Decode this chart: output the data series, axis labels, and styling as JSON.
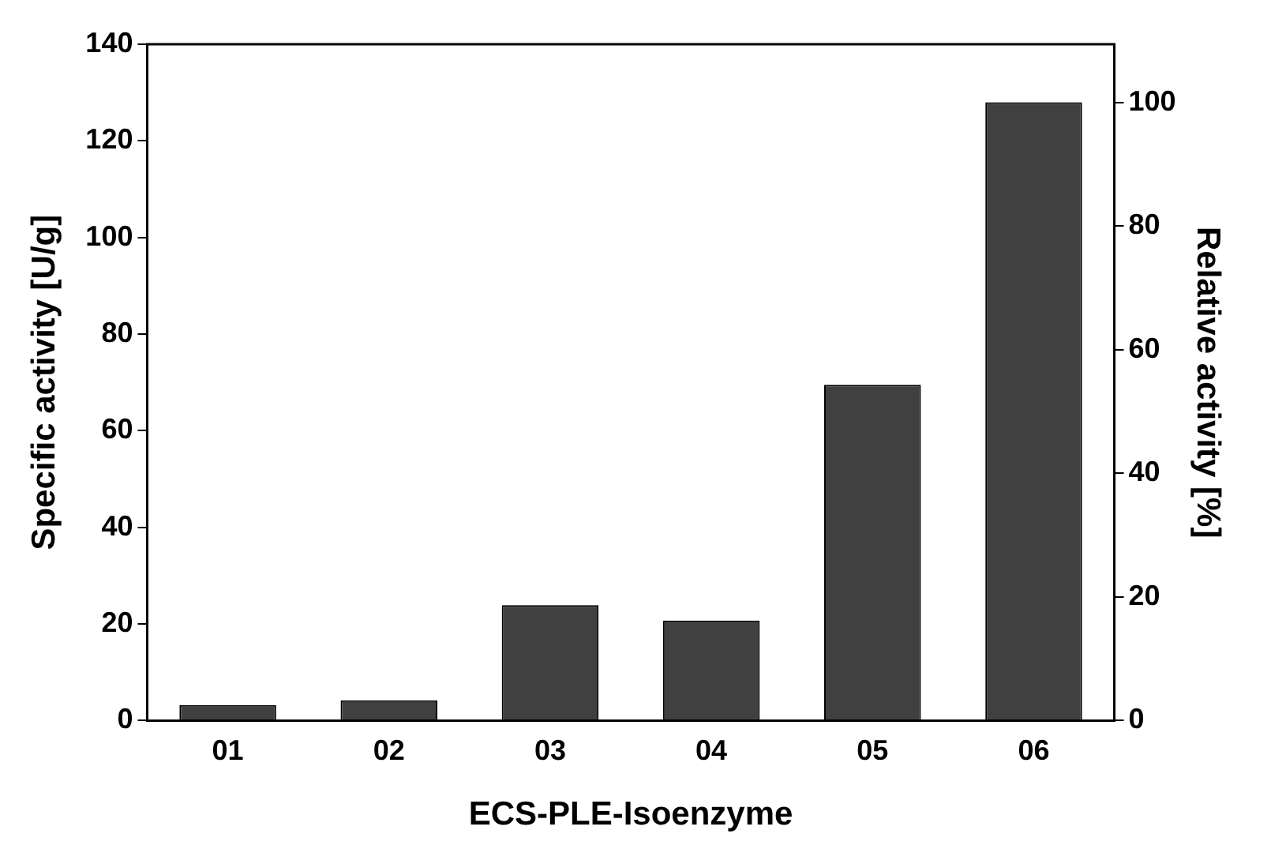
{
  "chart_data": {
    "type": "bar",
    "xlabel": "ECS-PLE-Isoenzyme",
    "ylabel": "Specific activity [U/g]",
    "y2label": "Relative activity [%]",
    "categories": [
      "01",
      "02",
      "03",
      "04",
      "05",
      "06"
    ],
    "values": [
      3.2,
      4.2,
      23.9,
      20.7,
      69.5,
      128
    ],
    "color": "#404040",
    "ylim": [
      0,
      140
    ],
    "yticks": [
      0,
      20,
      40,
      60,
      80,
      100,
      120,
      140
    ],
    "y2lim": [
      0,
      109.4
    ],
    "y2ticks": [
      0,
      20,
      40,
      60,
      80,
      100
    ],
    "grid": false,
    "legend": false
  }
}
